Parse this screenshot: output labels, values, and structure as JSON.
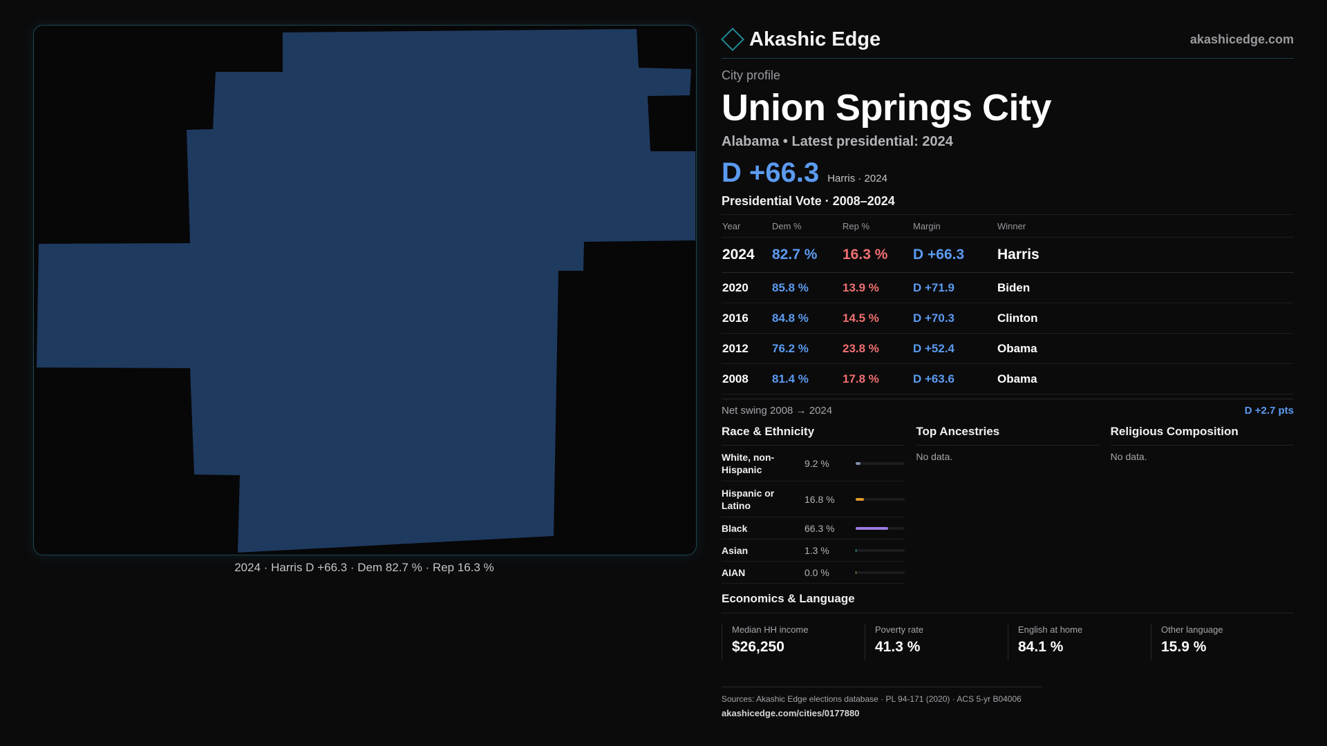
{
  "map": {
    "caption": "2024 · Harris D +66.3 · Dem 82.7 % · Rep 16.3 %",
    "fill_color": "#1f3a5f"
  },
  "brand": {
    "icon": "diamond-icon",
    "name": "Akashic Edge",
    "url": "akashicedge.com"
  },
  "profile": {
    "kicker": "City profile",
    "title": "Union Springs City",
    "subtitle": "Alabama • Latest presidential: 2024",
    "margin": "D +66.3",
    "margin_note": "Harris · 2024"
  },
  "vote_table": {
    "title": "Presidential Vote · 2008–2024",
    "headers": [
      "Year",
      "Dem %",
      "Rep %",
      "Margin",
      "Winner"
    ],
    "rows": [
      {
        "year": "2024",
        "dem": "82.7 %",
        "rep": "16.3 %",
        "margin": "D +66.3",
        "winner": "Harris"
      },
      {
        "year": "2020",
        "dem": "85.8 %",
        "rep": "13.9 %",
        "margin": "D +71.9",
        "winner": "Biden"
      },
      {
        "year": "2016",
        "dem": "84.8 %",
        "rep": "14.5 %",
        "margin": "D +70.3",
        "winner": "Clinton"
      },
      {
        "year": "2012",
        "dem": "76.2 %",
        "rep": "23.8 %",
        "margin": "D +52.4",
        "winner": "Obama"
      },
      {
        "year": "2008",
        "dem": "81.4 %",
        "rep": "17.8 %",
        "margin": "D +63.6",
        "winner": "Obama"
      }
    ]
  },
  "swing": {
    "label": "Net swing 2008 → 2024",
    "value": "D +2.7 pts"
  },
  "race": {
    "title": "Race & Ethnicity",
    "rows": [
      {
        "name": "White, non-Hispanic",
        "value": "9.2 %",
        "share": 9.2,
        "color": "#7f8fb0"
      },
      {
        "name": "Hispanic or Latino",
        "value": "16.8 %",
        "share": 16.8,
        "color": "#e09a2a"
      },
      {
        "name": "Black",
        "value": "66.3 %",
        "share": 66.3,
        "color": "#9b7be0"
      },
      {
        "name": "Asian",
        "value": "1.3 %",
        "share": 1.3,
        "color": "#4fc3c9"
      },
      {
        "name": "AIAN",
        "value": "0.0 %",
        "share": 0.0,
        "color": "#c9a04f"
      }
    ]
  },
  "ancestries": {
    "title": "Top Ancestries",
    "empty": "No data."
  },
  "religion": {
    "title": "Religious Composition",
    "empty": "No data."
  },
  "economics": {
    "title": "Economics & Language",
    "cells": [
      {
        "label": "Median HH income",
        "value": "$26,250"
      },
      {
        "label": "Poverty rate",
        "value": "41.3 %"
      },
      {
        "label": "English at home",
        "value": "84.1 %"
      },
      {
        "label": "Other language",
        "value": "15.9 %"
      }
    ]
  },
  "footer": {
    "sources": "Sources: Akashic Edge elections database · PL 94-171 (2020) · ACS 5-yr B04006",
    "url": "akashicedge.com/cities/0177880"
  }
}
